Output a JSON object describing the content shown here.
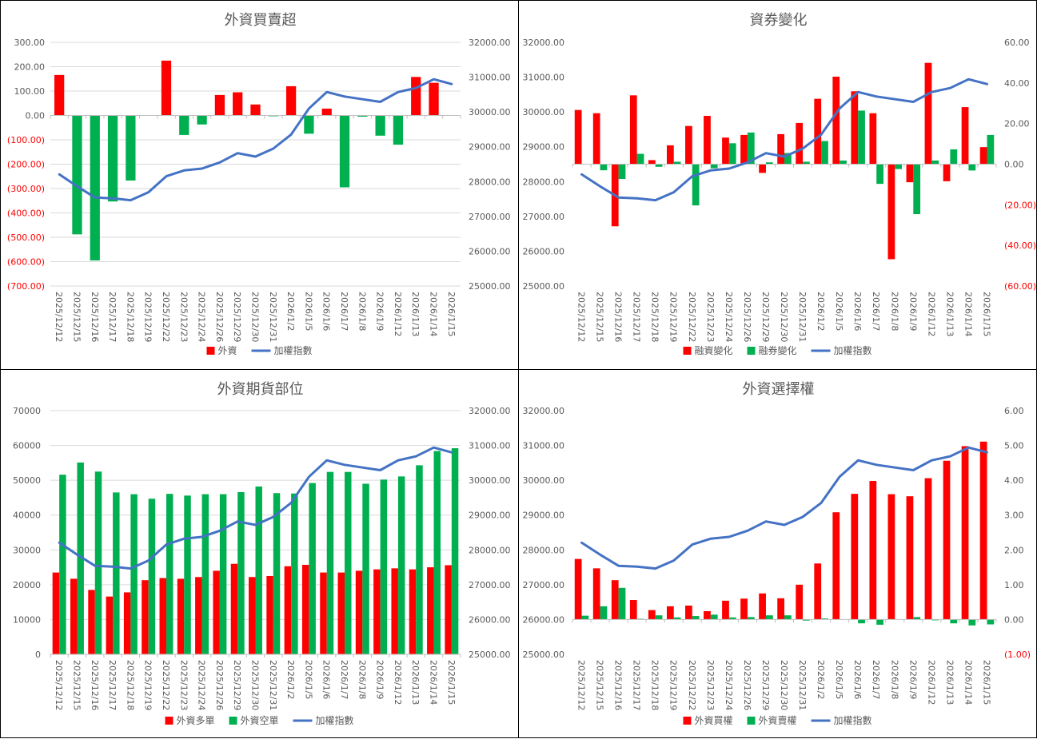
{
  "chart_data": [
    {
      "type": "bar+line",
      "title": "外資買賣超",
      "categories": [
        "2025/12/12",
        "2025/12/15",
        "2025/12/16",
        "2025/12/17",
        "2025/12/18",
        "2025/12/19",
        "2025/12/22",
        "2025/12/23",
        "2025/12/24",
        "2025/12/26",
        "2025/12/29",
        "2025/12/30",
        "2025/12/31",
        "2026/1/2",
        "2026/1/5",
        "2026/1/6",
        "2026/1/7",
        "2026/1/8",
        "2026/1/9",
        "2026/1/12",
        "2026/1/13",
        "2026/1/14",
        "2026/1/15"
      ],
      "left_axis": {
        "min": -700,
        "max": 300,
        "ticks": [
          "300.00",
          "200.00",
          "100.00",
          "0.00",
          "(100.00)",
          "(200.00)",
          "(300.00)",
          "(400.00)",
          "(500.00)",
          "(600.00)",
          "(700.00)"
        ]
      },
      "right_axis": {
        "min": 25000,
        "max": 32000,
        "ticks": [
          "32000.00",
          "31000.00",
          "30000.00",
          "29000.00",
          "28000.00",
          "27000.00",
          "26000.00",
          "25000.00"
        ]
      },
      "grid": true,
      "bar_axis": "left",
      "bar_series": [
        {
          "name": "外資",
          "color": "#FF0000",
          "neg_color": "#00B050",
          "values": [
            166,
            -488,
            -595,
            -353,
            -267,
            0,
            225,
            -80,
            -37,
            84,
            95,
            45,
            -3,
            120,
            -75,
            28,
            -295,
            -5,
            -83,
            -120,
            158,
            134,
            0
          ]
        }
      ],
      "line_series": {
        "name": "加權指數",
        "color": "#4472C4",
        "axis": "right",
        "values": [
          28206,
          27862,
          27542,
          27519,
          27466,
          27695,
          28153,
          28321,
          28374,
          28550,
          28817,
          28718,
          28947,
          29351,
          30099,
          30573,
          30443,
          30366,
          30290,
          30573,
          30687,
          30939,
          30802
        ]
      },
      "legend": "bottom"
    },
    {
      "type": "bar+line",
      "title": "資券變化",
      "categories": [
        "2025/12/12",
        "2025/12/15",
        "2025/12/16",
        "2025/12/17",
        "2025/12/18",
        "2025/12/19",
        "2025/12/22",
        "2025/12/23",
        "2025/12/24",
        "2025/12/26",
        "2025/12/29",
        "2025/12/30",
        "2025/12/31",
        "2026/1/2",
        "2026/1/5",
        "2026/1/6",
        "2026/1/7",
        "2026/1/8",
        "2026/1/9",
        "2026/1/12",
        "2026/1/13",
        "2026/1/14",
        "2026/1/15"
      ],
      "left_axis": {
        "min": 25000,
        "max": 32000,
        "ticks": [
          "32000.00",
          "31000.00",
          "30000.00",
          "29000.00",
          "28000.00",
          "27000.00",
          "26000.00",
          "25000.00"
        ]
      },
      "right_axis": {
        "min": -60,
        "max": 60,
        "ticks": [
          "60.00",
          "40.00",
          "20.00",
          "0.00",
          "(20.00)",
          "(40.00)",
          "(60.00)"
        ]
      },
      "grid": false,
      "bar_axis": "right",
      "bar_series": [
        {
          "name": "融資變化",
          "color": "#FF0000",
          "values": [
            26.7,
            25.1,
            -30.6,
            33.9,
            2.0,
            9.3,
            18.8,
            23.8,
            13.1,
            14.4,
            -4.3,
            14.8,
            20.3,
            32.2,
            43.1,
            35.9,
            25.1,
            -46.8,
            -8.9,
            49.9,
            -8.4,
            28.1,
            8.4
          ]
        },
        {
          "name": "融券變化",
          "color": "#00B050",
          "values": [
            0,
            -3.0,
            -7.3,
            5.1,
            -1.3,
            1.2,
            -20.3,
            -2.0,
            10.3,
            15.6,
            0.9,
            5.5,
            1.2,
            11.4,
            1.8,
            26.4,
            -9.7,
            -2.4,
            -24.6,
            1.8,
            7.3,
            -3.1,
            14.4
          ]
        }
      ],
      "line_series": {
        "name": "加權指數",
        "color": "#4472C4",
        "axis": "left",
        "values": [
          28206,
          27862,
          27542,
          27519,
          27466,
          27695,
          28153,
          28321,
          28374,
          28550,
          28817,
          28718,
          28947,
          29351,
          30099,
          30573,
          30443,
          30366,
          30290,
          30573,
          30687,
          30939,
          30802
        ]
      },
      "legend": "bottom"
    },
    {
      "type": "bar+line",
      "title": "外資期貨部位",
      "categories": [
        "2025/12/12",
        "2025/12/15",
        "2025/12/16",
        "2025/12/17",
        "2025/12/18",
        "2025/12/19",
        "2025/12/22",
        "2025/12/23",
        "2025/12/24",
        "2025/12/26",
        "2025/12/29",
        "2025/12/30",
        "2025/12/31",
        "2026/1/2",
        "2026/1/5",
        "2026/1/6",
        "2026/1/7",
        "2026/1/8",
        "2026/1/9",
        "2026/1/12",
        "2026/1/13",
        "2026/1/14",
        "2026/1/15"
      ],
      "left_axis": {
        "min": 0,
        "max": 70000,
        "ticks": [
          "70000",
          "60000",
          "50000",
          "40000",
          "30000",
          "20000",
          "10000",
          "0"
        ]
      },
      "right_axis": {
        "min": 25000,
        "max": 32000,
        "ticks": [
          "32000.00",
          "31000.00",
          "30000.00",
          "29000.00",
          "28000.00",
          "27000.00",
          "26000.00",
          "25000.00"
        ]
      },
      "grid": true,
      "bar_axis": "left",
      "bar_series": [
        {
          "name": "外資多單",
          "color": "#FF0000",
          "values": [
            23500,
            21700,
            18500,
            16600,
            17800,
            21300,
            21900,
            21700,
            22200,
            24000,
            26000,
            22200,
            22500,
            25300,
            25700,
            23500,
            23500,
            24000,
            24400,
            24700,
            24400,
            25000,
            25600
          ]
        },
        {
          "name": "外資空單",
          "color": "#00B050",
          "values": [
            51600,
            55100,
            52500,
            46500,
            46000,
            44700,
            46100,
            45600,
            46000,
            46000,
            46600,
            48200,
            46300,
            46200,
            49200,
            52400,
            52400,
            49000,
            50200,
            51100,
            54300,
            58400,
            59200
          ]
        }
      ],
      "line_series": {
        "name": "加權指數",
        "color": "#4472C4",
        "axis": "right",
        "values": [
          28206,
          27862,
          27542,
          27519,
          27466,
          27695,
          28153,
          28321,
          28374,
          28550,
          28817,
          28718,
          28947,
          29351,
          30099,
          30573,
          30443,
          30366,
          30290,
          30573,
          30687,
          30939,
          30802
        ]
      },
      "legend": "bottom"
    },
    {
      "type": "bar+line",
      "title": "外資選擇權",
      "categories": [
        "2025/12/12",
        "2025/12/15",
        "2025/12/16",
        "2025/12/17",
        "2025/12/18",
        "2025/12/19",
        "2025/12/22",
        "2025/12/23",
        "2025/12/24",
        "2025/12/26",
        "2025/12/29",
        "2025/12/30",
        "2025/12/31",
        "2026/1/2",
        "2026/1/5",
        "2026/1/6",
        "2026/1/7",
        "2026/1/8",
        "2026/1/9",
        "2026/1/12",
        "2026/1/13",
        "2026/1/14",
        "2026/1/15"
      ],
      "left_axis": {
        "min": 25000,
        "max": 32000,
        "ticks": [
          "32000.00",
          "31000.00",
          "30000.00",
          "29000.00",
          "28000.00",
          "27000.00",
          "26000.00",
          "25000.00"
        ]
      },
      "right_axis": {
        "min": -1,
        "max": 6,
        "ticks": [
          "6.00",
          "5.00",
          "4.00",
          "3.00",
          "2.00",
          "1.00",
          "0.00",
          "(1.00)"
        ]
      },
      "grid": false,
      "bar_axis": "right",
      "bar_series": [
        {
          "name": "外資買權",
          "color": "#FF0000",
          "values": [
            1.74,
            1.47,
            1.13,
            0.56,
            0.27,
            0.38,
            0.4,
            0.24,
            0.54,
            0.6,
            0.75,
            0.61,
            1.0,
            1.61,
            3.08,
            3.61,
            3.98,
            3.6,
            3.54,
            4.06,
            4.56,
            4.98,
            5.11
          ]
        },
        {
          "name": "外資賣權",
          "color": "#00B050",
          "values": [
            0.11,
            0.38,
            0.91,
            0.02,
            0.12,
            0.06,
            0.1,
            0.14,
            0.06,
            0.07,
            0.12,
            0.12,
            -0.03,
            0.03,
            0,
            -0.11,
            -0.15,
            0,
            0.07,
            -0.02,
            -0.11,
            -0.17,
            -0.14
          ]
        }
      ],
      "line_series": {
        "name": "加權指數",
        "color": "#4472C4",
        "axis": "left",
        "values": [
          28206,
          27862,
          27542,
          27519,
          27466,
          27695,
          28153,
          28321,
          28374,
          28550,
          28817,
          28718,
          28947,
          29351,
          30099,
          30573,
          30443,
          30366,
          30290,
          30573,
          30687,
          30939,
          30802
        ]
      },
      "legend": "bottom"
    }
  ]
}
